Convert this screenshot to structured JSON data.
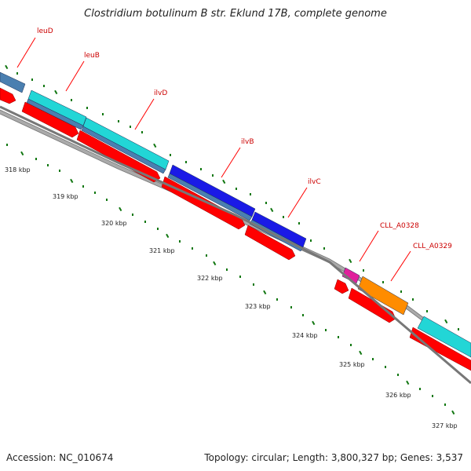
{
  "title": "Clostridium botulinum B str. Eklund 17B, complete genome",
  "footer": {
    "accession": "Accession: NC_010674",
    "summary": "Topology: circular; Length: 3,800,327 bp; Genes: 3,537"
  },
  "colors": {
    "forward_cds": "#ff0000",
    "label_line": "#ff0000",
    "tick": "#117711",
    "backbone": "#888888",
    "steelblue": "#4a7fb0",
    "cyan": "#22d6d6",
    "blue": "#1a1ae6",
    "magenta": "#e0209c",
    "orange": "#ff8c00"
  },
  "scale_labels": [
    "318 kbp",
    "319 kbp",
    "320 kbp",
    "321 kbp",
    "322 kbp",
    "323 kbp",
    "324 kbp",
    "325 kbp",
    "326 kbp",
    "327 kbp"
  ],
  "gene_labels": [
    {
      "name": "leuD"
    },
    {
      "name": "leuB"
    },
    {
      "name": "ilvD"
    },
    {
      "name": "ilvB"
    },
    {
      "name": "ilvC"
    },
    {
      "name": "CLL_A0328"
    },
    {
      "name": "CLL_A0329"
    }
  ]
}
